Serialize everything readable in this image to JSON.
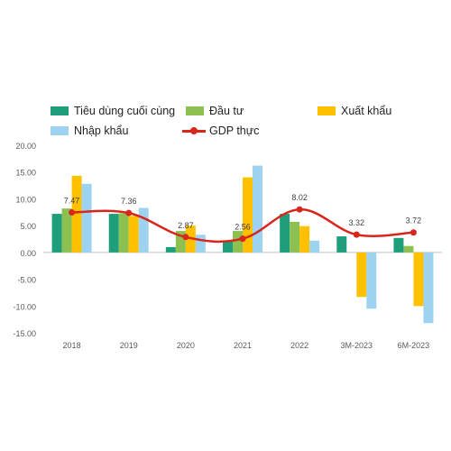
{
  "legend": {
    "items": [
      {
        "label": "Tiêu dùng cuối cùng",
        "color": "#1e9e7a"
      },
      {
        "label": "Đầu tư",
        "color": "#8cc152"
      },
      {
        "label": "Xuất khẩu",
        "color": "#ffc000"
      },
      {
        "label": "Nhập khẩu",
        "color": "#9dd3f0"
      },
      {
        "label": "GDP thực",
        "color": "#d9261c"
      }
    ]
  },
  "chart_data": {
    "type": "bar",
    "categories": [
      "2018",
      "2019",
      "2020",
      "2021",
      "2022",
      "3M-2023",
      "6M-2023"
    ],
    "series": [
      {
        "name": "Tiêu dùng cuối cùng",
        "type": "bar",
        "color": "#1e9e7a",
        "values": [
          7.2,
          7.2,
          1.0,
          2.0,
          7.2,
          3.0,
          2.7
        ]
      },
      {
        "name": "Đầu tư",
        "type": "bar",
        "color": "#8cc152",
        "values": [
          8.2,
          7.3,
          4.0,
          4.0,
          5.7,
          0.0,
          1.2
        ]
      },
      {
        "name": "Xuất khẩu",
        "type": "bar",
        "color": "#ffc000",
        "values": [
          14.3,
          6.8,
          5.0,
          14.0,
          4.9,
          -8.3,
          -10.0
        ]
      },
      {
        "name": "Nhập khẩu",
        "type": "bar",
        "color": "#9dd3f0",
        "values": [
          12.8,
          8.3,
          3.3,
          16.2,
          2.2,
          -10.5,
          -13.2
        ]
      },
      {
        "name": "GDP thực",
        "type": "line",
        "color": "#d9261c",
        "values": [
          7.47,
          7.36,
          2.87,
          2.56,
          8.02,
          3.32,
          3.72
        ],
        "labels": [
          "7.47",
          "7.36",
          "2.87",
          "2.56",
          "8.02",
          "3.32",
          "3.72"
        ]
      }
    ],
    "yticks": [
      "20.00",
      "15.00",
      "10.00",
      "5.00",
      "0.00",
      "-5.00",
      "-10.00",
      "-15.00"
    ],
    "ylim": [
      -15,
      20
    ],
    "grid": false,
    "legend_position": "top"
  }
}
